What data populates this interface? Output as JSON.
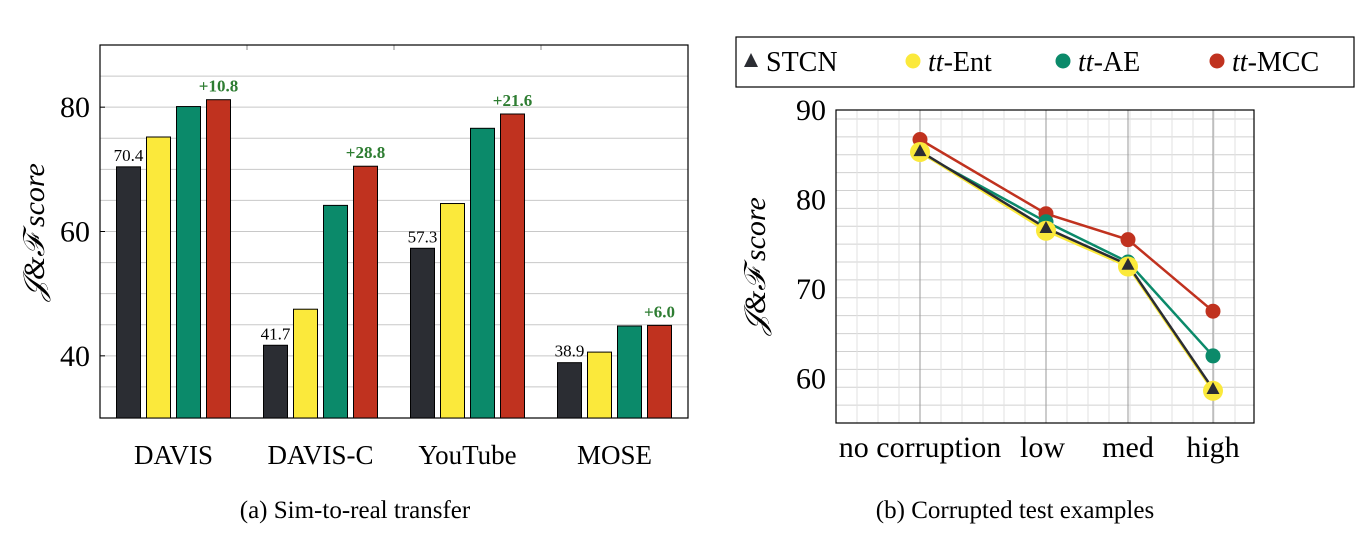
{
  "colors": {
    "STCN": "#2b2d33",
    "tt-Ent": "#fbe93b",
    "tt-AE": "#0b8a6a",
    "tt-MCC": "#c0321f",
    "delta": "#2e7d32"
  },
  "chart_data": [
    {
      "type": "bar",
      "caption": "(a) Sim-to-real transfer",
      "ylabel": "𝒥&ℱ score",
      "ylim": [
        30,
        90
      ],
      "yticks": [
        40,
        60,
        80
      ],
      "categories": [
        "DAVIS",
        "DAVIS-C",
        "YouTube",
        "MOSE"
      ],
      "series": [
        {
          "name": "STCN",
          "values": [
            70.4,
            41.7,
            57.3,
            38.9
          ]
        },
        {
          "name": "tt-Ent",
          "values": [
            75.2,
            47.5,
            64.5,
            40.6
          ]
        },
        {
          "name": "tt-AE",
          "values": [
            80.1,
            64.2,
            76.6,
            44.8
          ]
        },
        {
          "name": "tt-MCC",
          "values": [
            81.2,
            70.5,
            78.9,
            44.9
          ]
        }
      ],
      "base_labels": [
        "70.4",
        "41.7",
        "57.3",
        "38.9"
      ],
      "delta_labels": [
        "+10.8",
        "+28.8",
        "+21.6",
        "+6.0"
      ]
    },
    {
      "type": "line",
      "caption": "(b) Corrupted test examples",
      "ylabel": "𝒥&ℱ score",
      "ylim": [
        55,
        90
      ],
      "yticks": [
        60,
        70,
        80,
        90
      ],
      "categories": [
        "no corruption",
        "low",
        "med",
        "high"
      ],
      "series": [
        {
          "name": "STCN",
          "legend_prefix": "",
          "legend_suffix": "STCN",
          "values": [
            85.4,
            76.8,
            72.7,
            58.8
          ]
        },
        {
          "name": "tt-Ent",
          "legend_prefix": "tt",
          "legend_suffix": "-Ent",
          "values": [
            85.3,
            76.5,
            72.5,
            58.6
          ]
        },
        {
          "name": "tt-AE",
          "legend_prefix": "tt",
          "legend_suffix": "-AE",
          "values": [
            85.2,
            77.5,
            73.0,
            62.5
          ]
        },
        {
          "name": "tt-MCC",
          "legend_prefix": "tt",
          "legend_suffix": "-MCC",
          "values": [
            86.7,
            78.4,
            75.5,
            67.5
          ]
        }
      ]
    }
  ]
}
